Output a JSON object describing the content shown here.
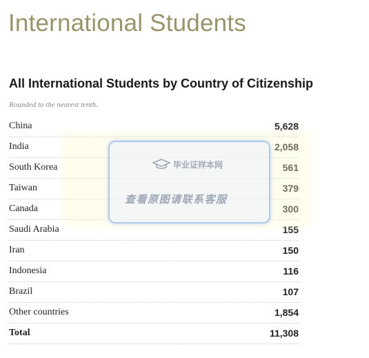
{
  "page": {
    "title": "International Students"
  },
  "section": {
    "heading": "All International Students by Country of Citizenship",
    "note": "Rounded to the nearest tenth."
  },
  "table": {
    "rows": [
      {
        "country": "China",
        "value": "5,628"
      },
      {
        "country": "India",
        "value": "2,058"
      },
      {
        "country": "South Korea",
        "value": "561"
      },
      {
        "country": "Taiwan",
        "value": "379"
      },
      {
        "country": "Canada",
        "value": "300"
      },
      {
        "country": "Saudi Arabia",
        "value": "155"
      },
      {
        "country": "Iran",
        "value": "150"
      },
      {
        "country": "Indonesia",
        "value": "116"
      },
      {
        "country": "Brazil",
        "value": "107"
      },
      {
        "country": "Other countries",
        "value": "1,854"
      }
    ],
    "total": {
      "label": "Total",
      "value": "11,308"
    }
  },
  "watermark": {
    "icon": "graduation-cap-icon",
    "brand": "毕业证样本网",
    "text": "查看原图请联系客服"
  },
  "colors": {
    "title": "#9b9466",
    "text": "#222222",
    "note": "#8a8a8a",
    "divider": "#cfcfcf",
    "watermark_border": "#96b9eb"
  }
}
